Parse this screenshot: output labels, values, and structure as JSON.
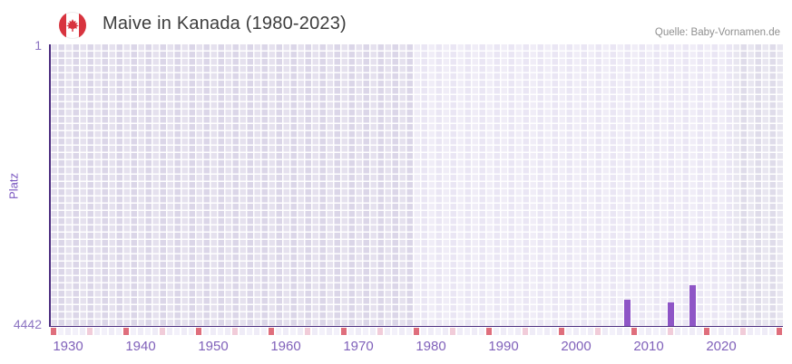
{
  "header": {
    "flag_icon": "canada-flag",
    "title": "Maive in Kanada (1980-2023)",
    "source": "Quelle: Baby-Vornamen.de"
  },
  "chart_data": {
    "type": "bar",
    "title": "Maive in Kanada (1980-2023)",
    "xlabel": "",
    "ylabel": "Platz",
    "y_axis": {
      "top_label": "1",
      "bottom_label": "4442",
      "min": 1,
      "max": 4442,
      "inverted": true,
      "note": "rank 1 at top, bars grow upward from 4442 baseline"
    },
    "x_axis": {
      "range_start": 1928,
      "range_end": 2028,
      "tick_labels": [
        "1930",
        "1940",
        "1950",
        "1960",
        "1970",
        "1980",
        "1990",
        "2000",
        "2010",
        "2020"
      ]
    },
    "points": [
      {
        "year": 2007,
        "rank": 4020
      },
      {
        "year": 2013,
        "rank": 4060
      },
      {
        "year": 2016,
        "rank": 3800
      }
    ],
    "highlighted_year_range": {
      "from": 1978,
      "to": 2021
    },
    "grid": "on",
    "legend": "none",
    "decor_strip": {
      "description": "year cell strip under x-axis",
      "red_marks_every_years": 10,
      "pink_marks_every_years": 10,
      "pink_offset_years": 5
    },
    "colors": {
      "bar": "#8e55c6",
      "axis_line": "#4b2c7f",
      "x_tick_label": "#8061ba",
      "y_tick_label": "#8c74c2",
      "y_axis_title": "#7a57c0",
      "grid_cell_outside_range": "#dbd6e8",
      "grid_cell_inside_range": "#eae6f4",
      "grid_cell_right_region": "#dfdcea",
      "grid_gap": "#ffffff",
      "strip_red": "#df6e7c",
      "strip_pink": "#f1ccd9",
      "strip_base": "#efecf7",
      "title_text": "#3d3d3d",
      "source_text": "#8f8f8f",
      "flag_red": "#d8343f"
    }
  }
}
